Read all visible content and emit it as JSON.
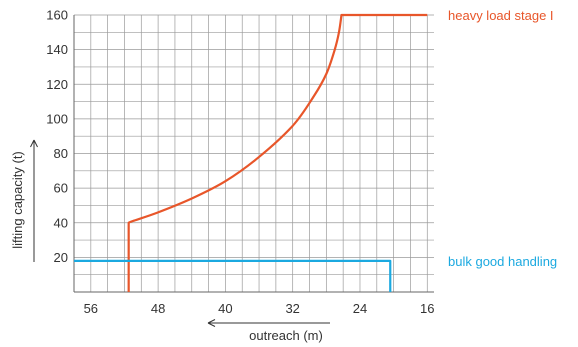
{
  "chart_data": {
    "type": "line",
    "xlabel": "outreach (m)",
    "ylabel": "lifting capacity (t)",
    "x_direction": "decreasing to the right",
    "xlim": [
      58,
      15.2
    ],
    "ylim": [
      0,
      160
    ],
    "x_ticks": [
      56,
      48,
      40,
      32,
      24,
      16
    ],
    "y_ticks": [
      20,
      40,
      60,
      80,
      100,
      120,
      140,
      160
    ],
    "grid": true,
    "series": [
      {
        "name": "heavy load stage I",
        "color": "#e8562a",
        "points": [
          [
            51.5,
            0
          ],
          [
            51.5,
            40
          ],
          [
            51,
            41
          ],
          [
            48,
            46
          ],
          [
            44,
            54
          ],
          [
            40,
            64
          ],
          [
            36,
            78
          ],
          [
            32,
            96
          ],
          [
            29.5,
            113
          ],
          [
            28,
            126
          ],
          [
            27,
            140
          ],
          [
            26.5,
            150
          ],
          [
            26.2,
            160
          ],
          [
            16,
            160
          ]
        ]
      },
      {
        "name": "bulk good handling",
        "color": "#1ba9e0",
        "points": [
          [
            58,
            18
          ],
          [
            20.4,
            18
          ],
          [
            20.4,
            0
          ]
        ]
      }
    ]
  }
}
